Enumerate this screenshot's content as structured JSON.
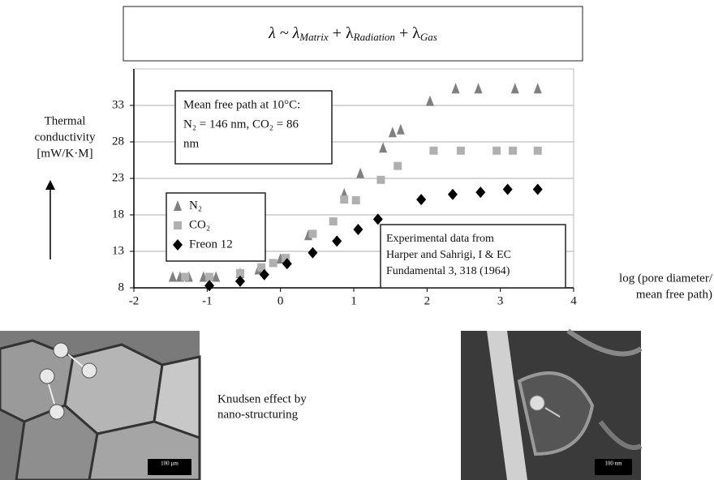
{
  "chart_data": {
    "type": "scatter",
    "formula": [
      "λ ~ λ",
      "Matrix",
      " + λ",
      "Radiation",
      " + λ",
      "Gas"
    ],
    "y_label": [
      "Thermal",
      "conductivity",
      "[mW/K·M]"
    ],
    "x_label": [
      "log (pore diameter/",
      "mean free path)"
    ],
    "xlim": [
      -2,
      4
    ],
    "xticks": [
      -2,
      -1,
      0,
      1,
      2,
      3,
      4
    ],
    "ylim": [
      8,
      38
    ],
    "yticks": [
      8,
      13,
      18,
      23,
      28,
      33
    ],
    "grid": true,
    "annotation": [
      "Mean free path at 10°C:",
      "N₂ = 146 nm, CO₂ = 86",
      "nm"
    ],
    "source_note": [
      "Experimental data from",
      "Harper and Sahrigi, I & EC",
      "Fundamental 3, 318 (1964)"
    ],
    "series": [
      {
        "name": "N₂",
        "color": "#808080",
        "marker": "triangle",
        "x": [
          -1.47,
          -1.37,
          -1.25,
          -1.05,
          -0.88,
          -0.55,
          -0.3,
          0.0,
          0.38,
          0.87,
          1.09,
          1.4,
          1.53,
          1.64,
          2.04,
          2.39,
          2.7,
          3.2,
          3.51
        ],
        "y": [
          9.5,
          9.5,
          9.5,
          9.5,
          9.5,
          10,
          10.5,
          12,
          15.2,
          20.9,
          23.7,
          27.2,
          29.3,
          29.7,
          33.6,
          35.3,
          35.3,
          35.3,
          35.3
        ]
      },
      {
        "name": "CO₂",
        "color": "#b0b0b0",
        "marker": "square",
        "x": [
          -1.3,
          -0.97,
          -0.55,
          -0.26,
          -0.1,
          0.07,
          0.44,
          0.72,
          0.87,
          1.03,
          1.37,
          1.6,
          2.09,
          2.46,
          2.95,
          3.17,
          3.51
        ],
        "y": [
          9.5,
          9.5,
          10,
          10.8,
          11.4,
          12.1,
          15.4,
          17.1,
          20.1,
          20,
          22.8,
          24.7,
          26.8,
          26.8,
          26.8,
          26.8,
          26.8
        ]
      },
      {
        "name": "Freon 12",
        "color": "#000000",
        "marker": "diamond",
        "x": [
          -0.97,
          -0.55,
          -0.22,
          0.09,
          0.44,
          0.77,
          1.06,
          1.33,
          1.92,
          2.35,
          2.73,
          3.1,
          3.51
        ],
        "y": [
          8.3,
          8.9,
          9.8,
          11.3,
          12.8,
          14.4,
          16,
          17.4,
          20.1,
          20.8,
          21.1,
          21.5,
          21.5
        ]
      }
    ]
  },
  "caption": [
    "Knudsen effect by",
    "nano-structuring"
  ],
  "images": [
    {
      "scale_label": "100 µm"
    },
    {
      "scale_label": "100 nm"
    }
  ]
}
